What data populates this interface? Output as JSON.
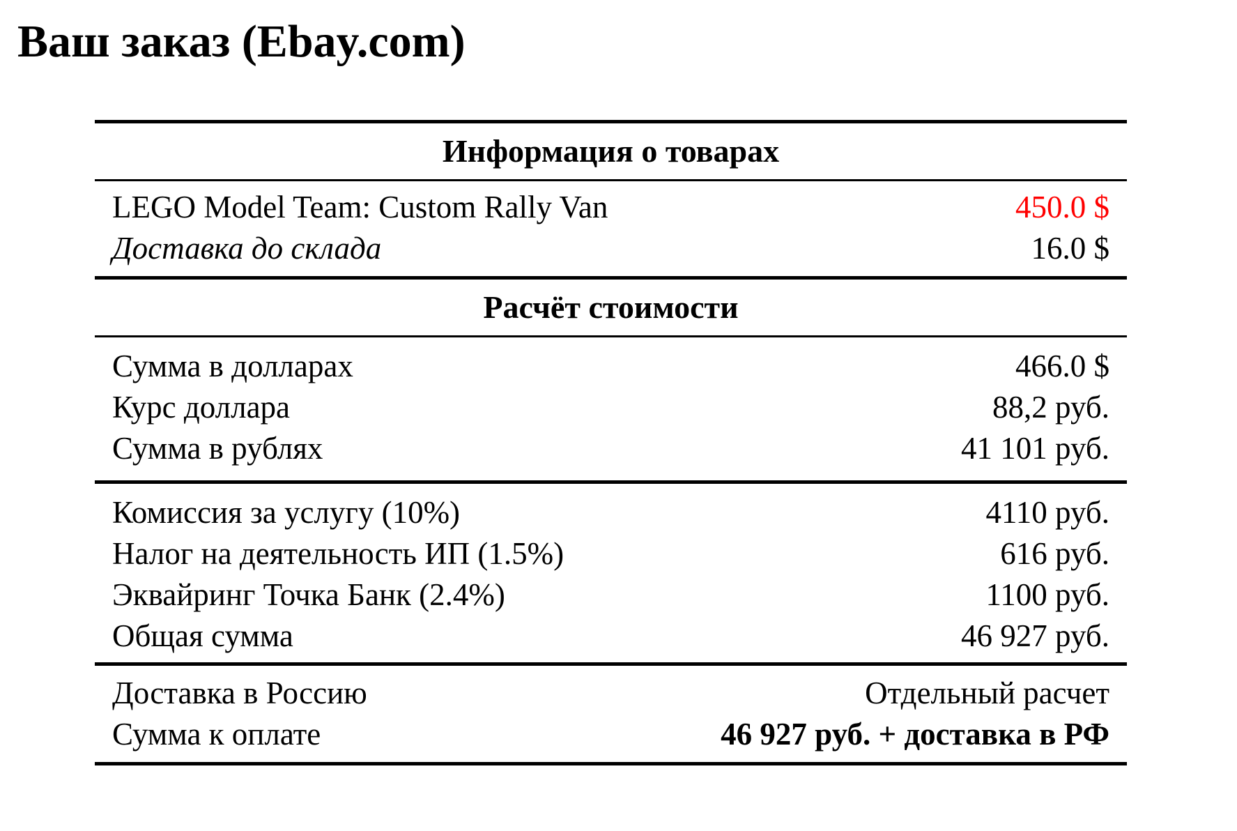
{
  "page": {
    "title": "Ваш заказ (Ebay.com)"
  },
  "order_table": {
    "products_header": "Информация о товарах",
    "products": [
      {
        "label": "LEGO Model Team: Custom Rally Van",
        "value": "450.0 $"
      },
      {
        "label": "Доставка до склада",
        "value": "16.0 $"
      }
    ],
    "calc_header": "Расчёт стоимости",
    "subtotals": [
      {
        "label": "Сумма в долларах",
        "value": "466.0 $"
      },
      {
        "label": "Курс доллара",
        "value": "88,2 руб."
      },
      {
        "label": "Сумма в рублях",
        "value": "41 101 руб."
      }
    ],
    "fees": [
      {
        "label": "Комиссия за услугу (10%)",
        "value": "4110 руб."
      },
      {
        "label": "Налог на деятельность ИП (1.5%)",
        "value": "616 руб."
      },
      {
        "label": "Эквайринг Точка Банк (2.4%)",
        "value": "1100 руб."
      },
      {
        "label": "Общая сумма",
        "value": "46 927 руб."
      }
    ],
    "totals": [
      {
        "label": "Доставка в Россию",
        "value": "Отдельный расчет"
      },
      {
        "label": "Сумма к оплате",
        "value": "46 927 руб. + доставка в РФ"
      }
    ]
  },
  "colors": {
    "price_highlight": "#ff0000",
    "text": "#000000",
    "background": "#ffffff"
  }
}
